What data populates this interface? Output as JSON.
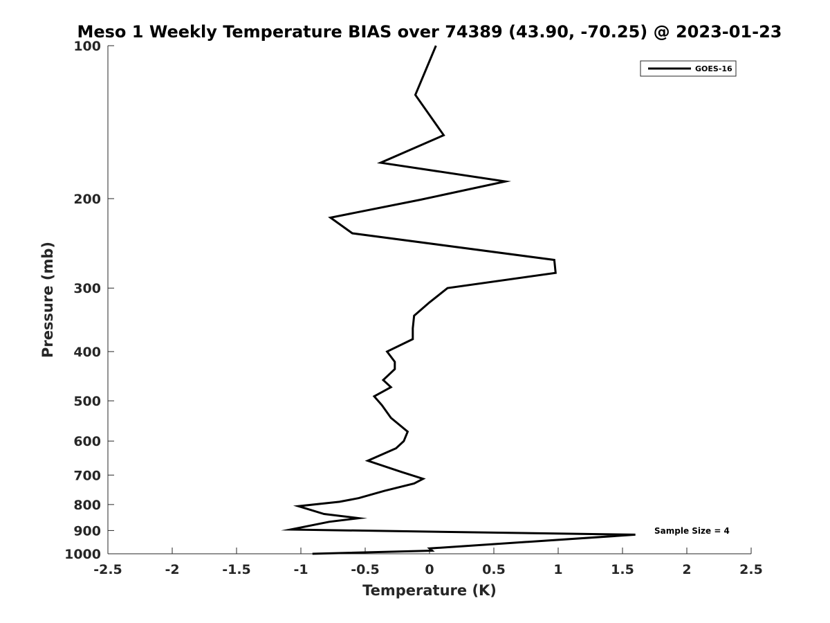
{
  "chart_data": {
    "type": "line",
    "title": "Meso 1 Weekly Temperature BIAS over 74389 (43.90, -70.25) @ 2023-01-23",
    "xlabel": "Temperature (K)",
    "ylabel": "Pressure (mb)",
    "xlim": [
      -2.5,
      2.5
    ],
    "ylim": [
      100,
      1000
    ],
    "yscale": "log",
    "y_reversed": true,
    "xticks": [
      -2.5,
      -2,
      -1.5,
      -1,
      -0.5,
      0,
      0.5,
      1,
      1.5,
      2,
      2.5
    ],
    "xtick_labels": [
      "-2.5",
      "-2",
      "-1.5",
      "-1",
      "-0.5",
      "0",
      "0.5",
      "1",
      "1.5",
      "2",
      "2.5"
    ],
    "yticks": [
      100,
      200,
      300,
      400,
      500,
      600,
      700,
      800,
      900,
      1000
    ],
    "ytick_labels": [
      "100",
      "200",
      "300",
      "400",
      "500",
      "600",
      "700",
      "800",
      "900",
      "1000"
    ],
    "grid": false,
    "legend_position": "top-right",
    "annotation": "Sample Size = 4",
    "series": [
      {
        "name": "GOES-16",
        "color": "#000000",
        "x": [
          0.05,
          -0.11,
          0.11,
          -0.38,
          0.59,
          -0.07,
          -0.77,
          -0.6,
          0.97,
          0.98,
          0.14,
          0.0,
          -0.12,
          -0.13,
          -0.13,
          -0.33,
          -0.27,
          -0.27,
          -0.36,
          -0.3,
          -0.43,
          -0.37,
          -0.3,
          -0.17,
          -0.2,
          -0.26,
          -0.48,
          -0.22,
          -0.05,
          -0.12,
          -0.35,
          -0.55,
          -0.7,
          -1.02,
          -0.82,
          -0.55,
          -0.78,
          -1.08,
          1.6,
          0.0,
          0.02,
          -0.91
        ],
        "y": [
          100,
          125,
          150,
          170,
          185,
          201,
          218,
          234,
          264,
          280,
          300,
          320,
          340,
          360,
          378,
          400,
          419,
          433,
          455,
          470,
          490,
          510,
          540,
          575,
          600,
          620,
          656,
          690,
          712,
          727,
          752,
          777,
          790,
          806,
          835,
          851,
          865,
          896,
          917,
          976,
          986,
          1000
        ]
      }
    ]
  }
}
